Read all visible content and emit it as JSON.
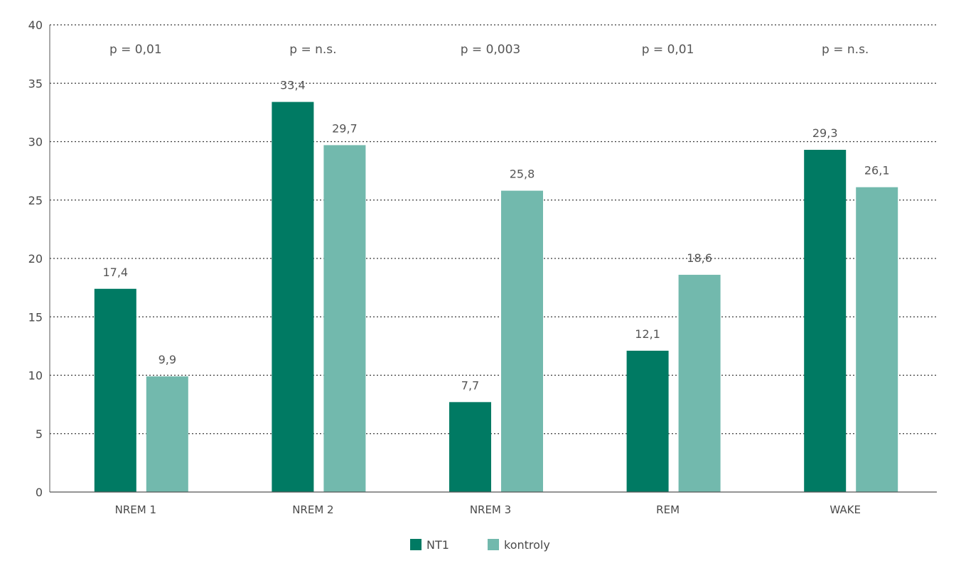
{
  "chart_data": {
    "type": "bar",
    "title": "",
    "xlabel": "",
    "ylabel": "",
    "categories": [
      "NREM 1",
      "NREM 2",
      "NREM 3",
      "REM",
      "WAKE"
    ],
    "series": [
      {
        "name": "NT1",
        "values": [
          17.4,
          33.4,
          7.7,
          12.1,
          29.3
        ],
        "labels": [
          "17,4",
          "33,4",
          "7,7",
          "12,1",
          "29,3"
        ],
        "color": "#007a63"
      },
      {
        "name": "kontroly",
        "values": [
          9.9,
          29.7,
          25.8,
          18.6,
          26.1
        ],
        "labels": [
          "9,9",
          "29,7",
          "25,8",
          "18,6",
          "26,1"
        ],
        "color": "#72b9ad"
      }
    ],
    "p_values": [
      "p = 0,01",
      "p = n.s.",
      "p = 0,003",
      "p = 0,01",
      "p = n.s."
    ],
    "ylim": [
      0,
      40
    ],
    "yticks": [
      0,
      5,
      10,
      15,
      20,
      25,
      30,
      35,
      40
    ],
    "ytick_labels": [
      "0",
      "5",
      "10",
      "15",
      "20",
      "25",
      "30",
      "35",
      "40"
    ],
    "grid": true,
    "grid_style": "dotted",
    "legend_position": "bottom-center"
  }
}
